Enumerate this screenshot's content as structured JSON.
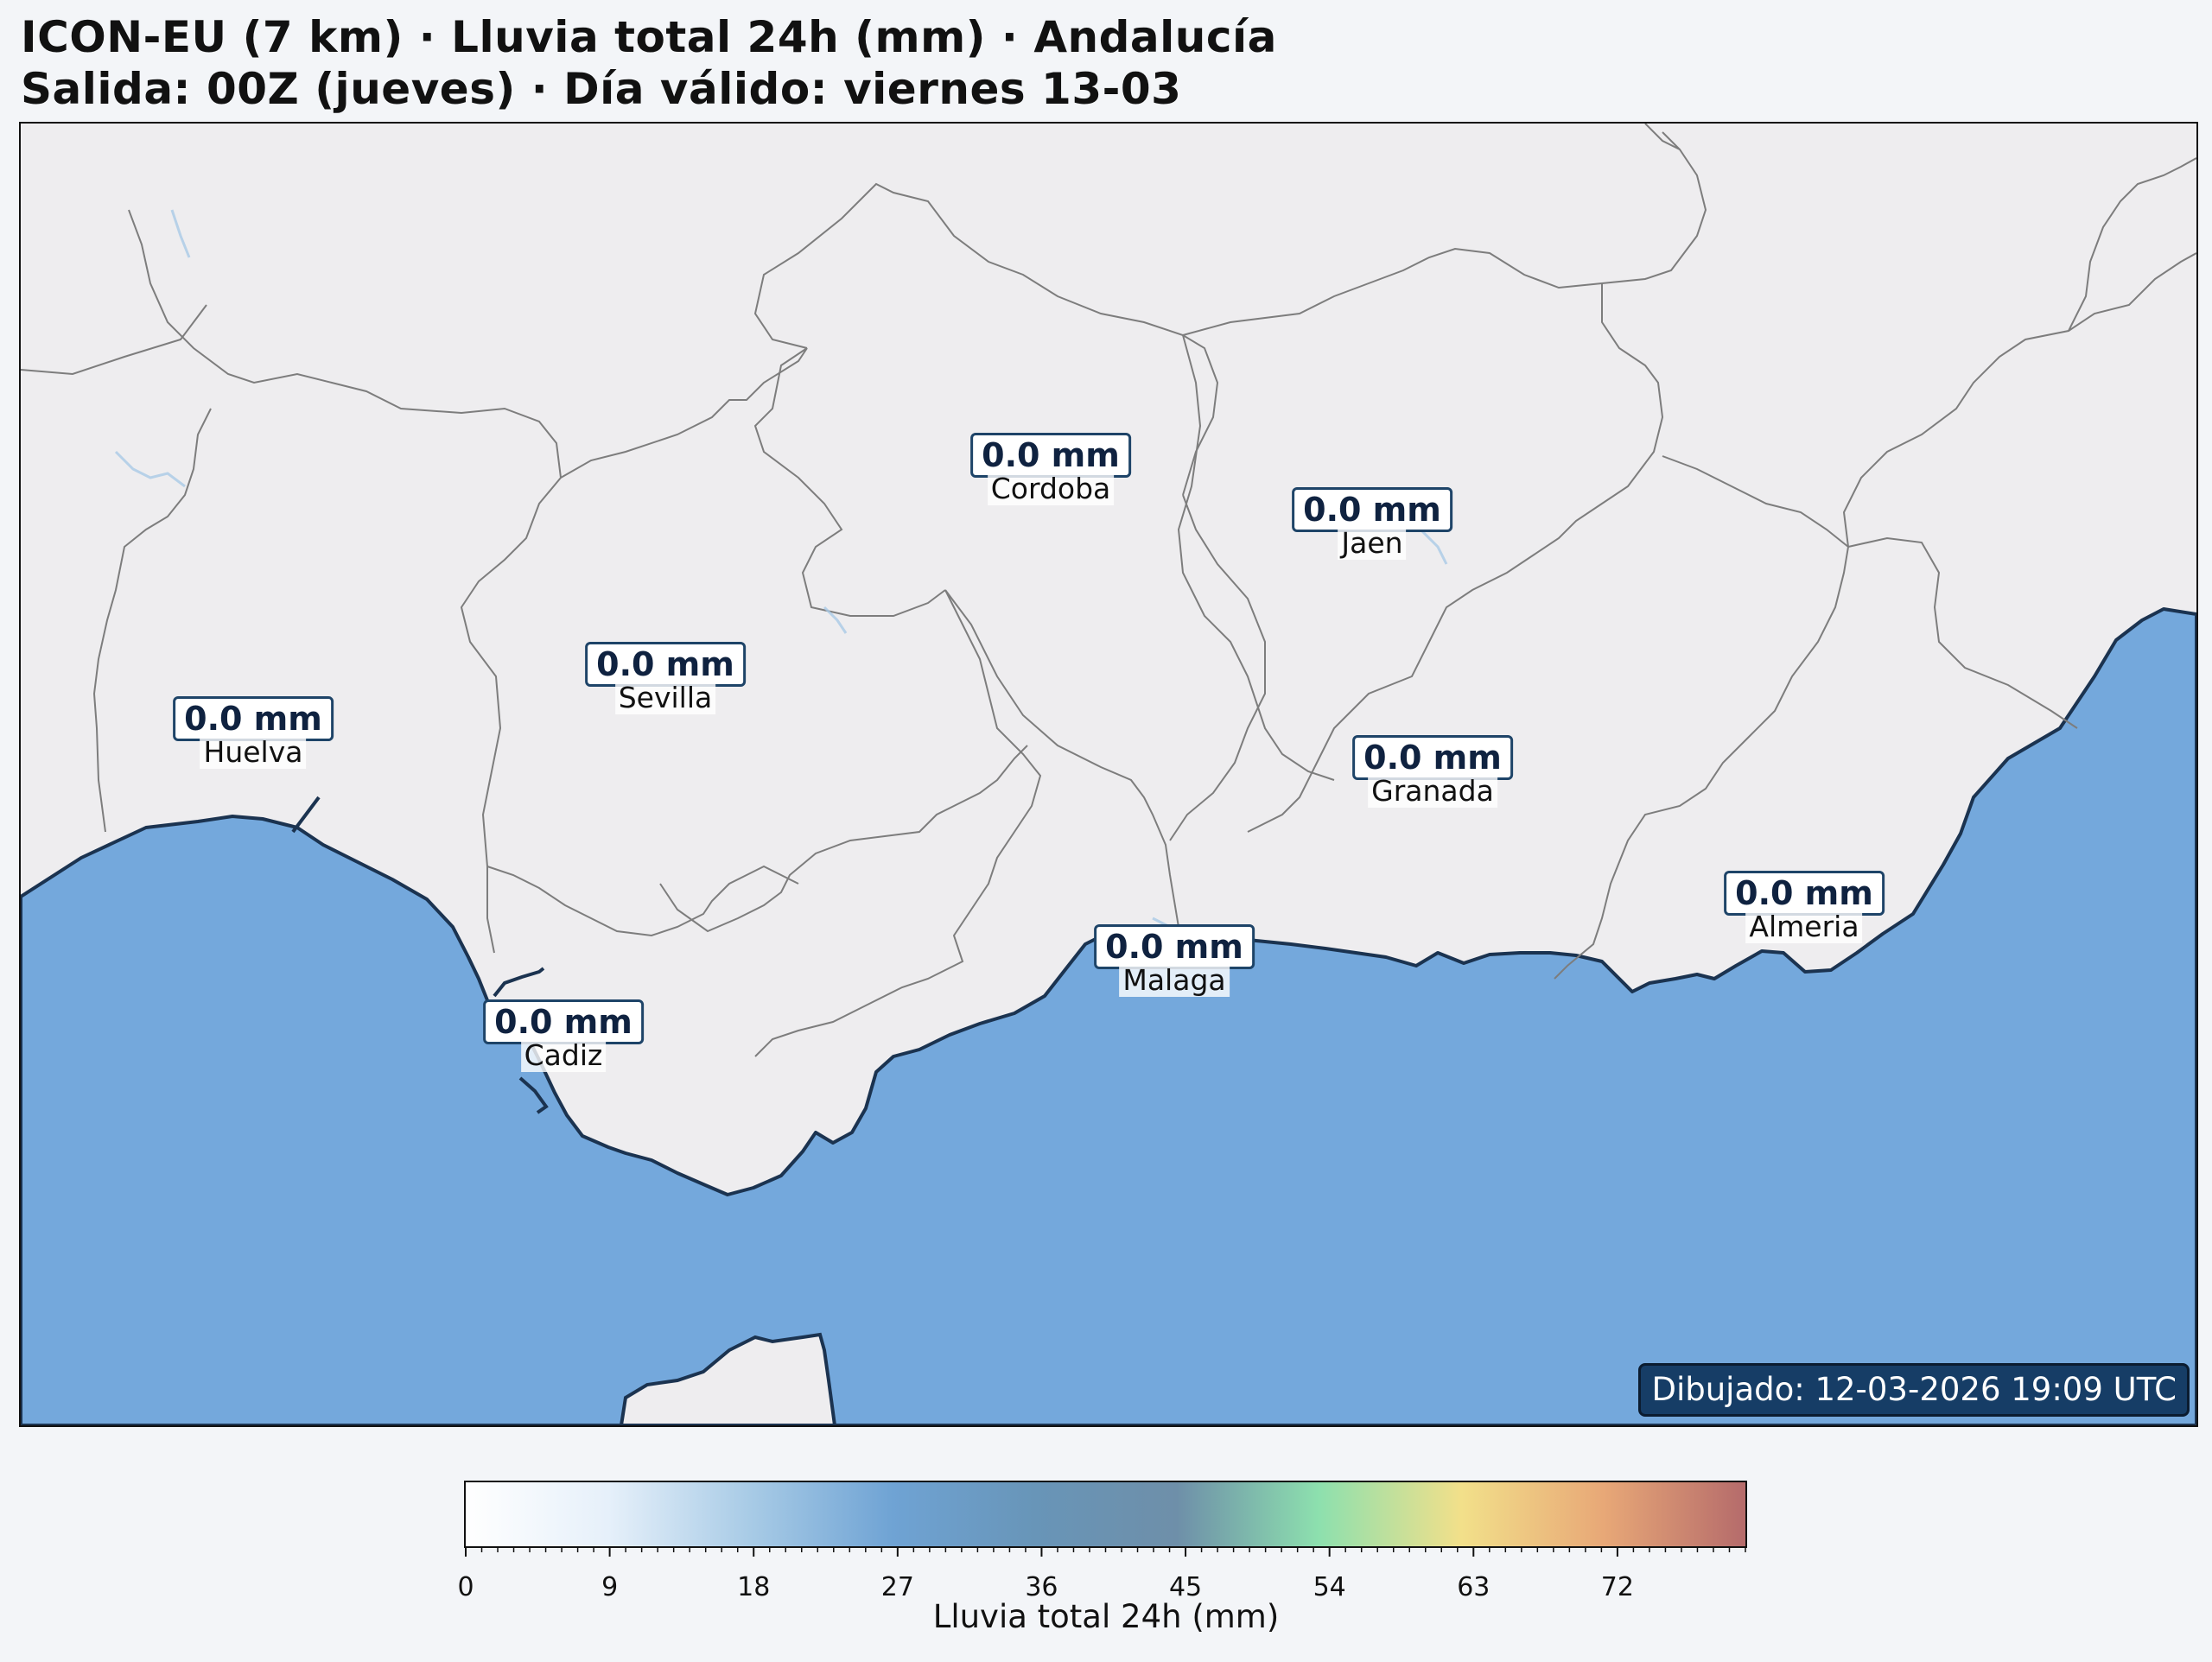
{
  "header": {
    "title_line1": "ICON-EU (7 km) · Lluvia total 24h (mm) · Andalucía",
    "title_line2": "Salida: 00Z (jueves) · Día válido: viernes 13-03"
  },
  "map": {
    "region": "Andalucía",
    "colors": {
      "land": "#eeedef",
      "sea": "#74a8dc",
      "coast": "#1b3350",
      "borders": "#808080",
      "label_border": "#1e4468"
    },
    "cities": [
      {
        "name": "Huelva",
        "value": "0.0 mm"
      },
      {
        "name": "Sevilla",
        "value": "0.0 mm"
      },
      {
        "name": "Cordoba",
        "value": "0.0 mm"
      },
      {
        "name": "Jaen",
        "value": "0.0 mm"
      },
      {
        "name": "Granada",
        "value": "0.0 mm"
      },
      {
        "name": "Cadiz",
        "value": "0.0 mm"
      },
      {
        "name": "Malaga",
        "value": "0.0 mm"
      },
      {
        "name": "Almeria",
        "value": "0.0 mm"
      }
    ],
    "timestamp": "Dibujado: 12-03-2026 19:09 UTC"
  },
  "colorbar": {
    "label": "Lluvia total 24h (mm)",
    "min": 0,
    "max": 80,
    "tick_labels": [
      "0",
      "9",
      "18",
      "27",
      "36",
      "45",
      "54",
      "63",
      "72"
    ],
    "stops": [
      "#ffffff",
      "#e6f0fa",
      "#a8cbe6",
      "#6fa3d4",
      "#6895b8",
      "#6e8fa9",
      "#8de0ae",
      "#f2e08a",
      "#e8a877",
      "#b56b6b"
    ]
  }
}
